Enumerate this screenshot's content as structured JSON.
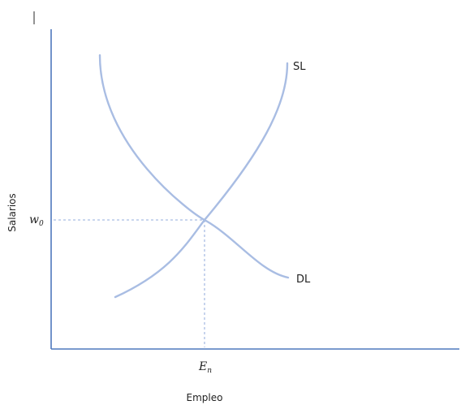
{
  "diagram": {
    "curves": {
      "supply_label": "SL",
      "demand_label": "DL"
    },
    "axes": {
      "y_title": "Salarios",
      "x_title": "Empleo"
    },
    "equilibrium": {
      "wage_symbol": "w",
      "wage_subscript": "0",
      "employment_symbol": "E",
      "employment_subscript": "n"
    }
  }
}
